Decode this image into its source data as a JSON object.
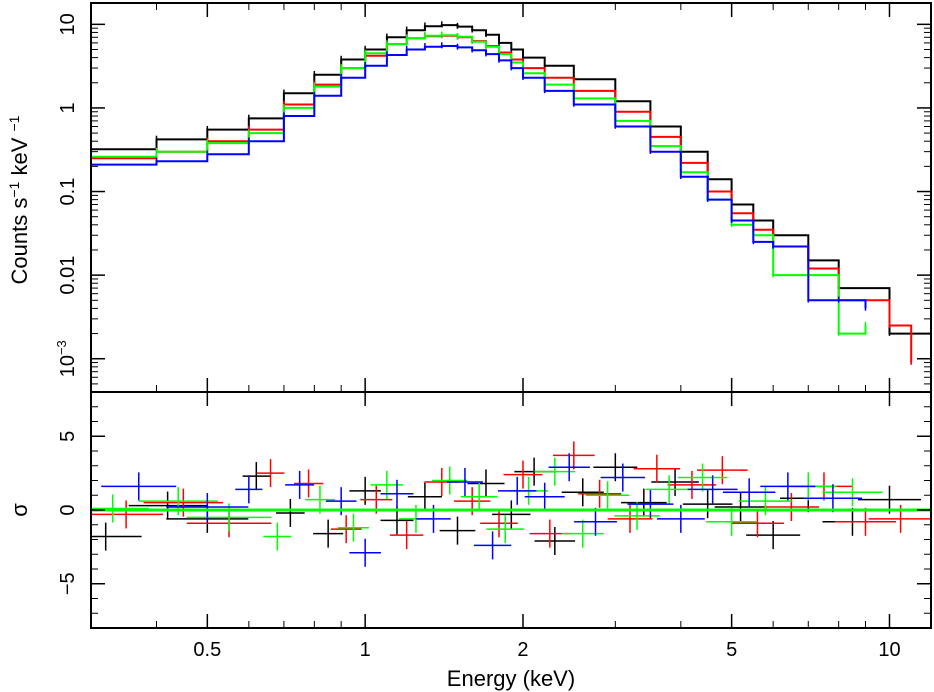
{
  "chart_data": [
    {
      "type": "line",
      "panel": "spectrum",
      "style": "step-with-errorbars",
      "xscale": "log",
      "yscale": "log",
      "xlim": [
        0.3,
        12
      ],
      "ylim": [
        0.0004,
        18
      ],
      "ylabel_parts": [
        "Counts s",
        "−1",
        " keV ",
        "−1"
      ],
      "y_ticks": [
        {
          "value": 10,
          "label": "10"
        },
        {
          "value": 1,
          "label": "1"
        },
        {
          "value": 0.1,
          "label": "0.1"
        },
        {
          "value": 0.01,
          "label": "0.01"
        },
        {
          "value": 0.001,
          "label": "10",
          "sup": "−3"
        }
      ],
      "series": [
        {
          "name": "black",
          "color": "#000000",
          "x": [
            0.3,
            0.4,
            0.5,
            0.6,
            0.7,
            0.8,
            0.9,
            1.0,
            1.1,
            1.2,
            1.3,
            1.4,
            1.5,
            1.6,
            1.7,
            1.8,
            1.9,
            2.0,
            2.2,
            2.5,
            3.0,
            3.5,
            4.0,
            4.5,
            5.0,
            5.5,
            6.0,
            7.0,
            8.0,
            10.0,
            12.0
          ],
          "y": [
            0.32,
            0.42,
            0.55,
            0.75,
            1.5,
            2.5,
            3.8,
            5.0,
            7.0,
            8.5,
            9.5,
            9.8,
            9.4,
            8.5,
            7.5,
            6.0,
            5.0,
            4.0,
            3.2,
            2.2,
            1.2,
            0.6,
            0.3,
            0.14,
            0.07,
            0.045,
            0.03,
            0.015,
            0.007,
            0.002,
            0.002
          ]
        },
        {
          "name": "red",
          "color": "#ff0000",
          "x": [
            0.3,
            0.4,
            0.5,
            0.6,
            0.7,
            0.8,
            0.9,
            1.0,
            1.1,
            1.2,
            1.3,
            1.4,
            1.5,
            1.6,
            1.7,
            1.8,
            1.9,
            2.0,
            2.2,
            2.5,
            3.0,
            3.5,
            4.0,
            4.5,
            5.0,
            5.5,
            6.0,
            7.0,
            8.0,
            10.0,
            11.0
          ],
          "y": [
            0.25,
            0.3,
            0.4,
            0.55,
            1.1,
            1.9,
            3.0,
            4.2,
            5.8,
            6.8,
            7.2,
            7.3,
            7.0,
            6.3,
            5.5,
            4.6,
            3.8,
            3.0,
            2.3,
            1.6,
            0.9,
            0.45,
            0.22,
            0.1,
            0.055,
            0.035,
            0.022,
            0.012,
            0.005,
            0.0025,
            0.0009
          ]
        },
        {
          "name": "green",
          "color": "#00ff00",
          "x": [
            0.3,
            0.4,
            0.5,
            0.6,
            0.7,
            0.8,
            0.9,
            1.0,
            1.1,
            1.2,
            1.3,
            1.4,
            1.5,
            1.6,
            1.7,
            1.8,
            1.9,
            2.0,
            2.2,
            2.5,
            3.0,
            3.5,
            4.0,
            4.5,
            5.0,
            5.5,
            6.0,
            7.0,
            8.0,
            9.0
          ],
          "y": [
            0.26,
            0.3,
            0.38,
            0.5,
            1.0,
            1.8,
            3.0,
            4.5,
            5.8,
            6.8,
            7.3,
            7.4,
            7.1,
            6.2,
            5.4,
            4.4,
            3.5,
            2.6,
            1.9,
            1.3,
            0.7,
            0.35,
            0.17,
            0.08,
            0.04,
            0.03,
            0.01,
            0.01,
            0.002,
            0.0025
          ]
        },
        {
          "name": "blue",
          "color": "#0000ff",
          "x": [
            0.3,
            0.4,
            0.5,
            0.6,
            0.7,
            0.8,
            0.9,
            1.0,
            1.1,
            1.2,
            1.3,
            1.4,
            1.5,
            1.6,
            1.7,
            1.8,
            1.9,
            2.0,
            2.2,
            2.5,
            3.0,
            3.5,
            4.0,
            4.5,
            5.0,
            5.5,
            6.0,
            7.0,
            8.0,
            9.0
          ],
          "y": [
            0.21,
            0.23,
            0.28,
            0.4,
            0.8,
            1.4,
            2.3,
            3.2,
            4.3,
            5.0,
            5.4,
            5.5,
            5.3,
            4.9,
            4.4,
            3.7,
            3.0,
            2.3,
            1.6,
            1.1,
            0.6,
            0.3,
            0.15,
            0.08,
            0.045,
            0.025,
            0.022,
            0.005,
            0.005,
            0.004
          ]
        }
      ]
    },
    {
      "type": "scatter",
      "panel": "residuals",
      "style": "crosses",
      "xscale": "log",
      "xlim": [
        0.3,
        12
      ],
      "ylim": [
        -8,
        8
      ],
      "ylabel": "σ",
      "xlabel": "Energy (keV)",
      "x_ticks": [
        {
          "value": 0.5,
          "label": "0.5"
        },
        {
          "value": 1,
          "label": "1"
        },
        {
          "value": 2,
          "label": "2"
        },
        {
          "value": 5,
          "label": "5"
        },
        {
          "value": 10,
          "label": "10"
        }
      ],
      "y_ticks": [
        {
          "value": 5,
          "label": "5"
        },
        {
          "value": 0,
          "label": "0"
        },
        {
          "value": -5,
          "label": "−5"
        }
      ],
      "zero_line": 0,
      "series": [
        {
          "name": "black",
          "color": "#000000",
          "x": [
            0.32,
            0.42,
            0.5,
            0.62,
            0.72,
            0.85,
            1.0,
            1.15,
            1.3,
            1.5,
            1.7,
            1.9,
            2.1,
            2.3,
            2.6,
            3.0,
            3.4,
            3.9,
            4.5,
            5.2,
            6.0,
            7.0,
            8.5,
            10.0
          ],
          "y": [
            -1.8,
            0.3,
            -0.6,
            2.3,
            -0.2,
            -1.6,
            1.3,
            -0.7,
            0.9,
            -1.4,
            1.8,
            -0.3,
            2.6,
            -2.1,
            1.2,
            2.9,
            0.5,
            1.9,
            0.4,
            0.2,
            -1.7,
            0.8,
            -0.8,
            0.7
          ]
        },
        {
          "name": "red",
          "color": "#ff0000",
          "x": [
            0.35,
            0.45,
            0.55,
            0.66,
            0.78,
            0.92,
            1.05,
            1.2,
            1.4,
            1.6,
            1.8,
            2.0,
            2.25,
            2.5,
            2.8,
            3.2,
            3.6,
            4.2,
            4.8,
            5.6,
            6.5,
            7.5,
            9.0,
            10.5
          ],
          "y": [
            -0.3,
            0.5,
            -0.9,
            2.5,
            1.8,
            -1.3,
            0.7,
            -1.7,
            1.9,
            0.6,
            -0.9,
            2.4,
            -1.6,
            3.7,
            1.1,
            -0.6,
            2.8,
            1.7,
            2.7,
            -0.9,
            0.2,
            1.6,
            -0.8,
            -0.6
          ]
        },
        {
          "name": "green",
          "color": "#00ff00",
          "x": [
            0.33,
            0.44,
            0.55,
            0.68,
            0.82,
            0.95,
            1.1,
            1.25,
            1.45,
            1.65,
            1.85,
            2.05,
            2.3,
            2.6,
            2.9,
            3.3,
            3.8,
            4.4,
            5.0,
            5.8,
            7.0,
            8.5
          ],
          "y": [
            0.1,
            0.6,
            -0.5,
            -1.8,
            0.7,
            -1.2,
            1.7,
            -0.6,
            2.0,
            0.9,
            -1.3,
            1.3,
            2.6,
            -1.6,
            1.0,
            -0.4,
            1.4,
            2.2,
            -0.8,
            0.6,
            1.6,
            1.2
          ]
        },
        {
          "name": "blue",
          "color": "#0000ff",
          "x": [
            0.37,
            0.5,
            0.6,
            0.75,
            0.9,
            1.0,
            1.15,
            1.35,
            1.55,
            1.75,
            1.95,
            2.2,
            2.45,
            2.75,
            3.1,
            3.5,
            4.0,
            4.6,
            5.4,
            6.4,
            7.8
          ],
          "y": [
            1.6,
            0.2,
            1.4,
            1.7,
            0.6,
            -2.9,
            1.1,
            -0.6,
            1.9,
            -2.4,
            1.3,
            0.9,
            2.9,
            -0.8,
            2.2,
            0.4,
            -0.6,
            1.4,
            1.2,
            1.6,
            0.8
          ]
        }
      ]
    }
  ]
}
